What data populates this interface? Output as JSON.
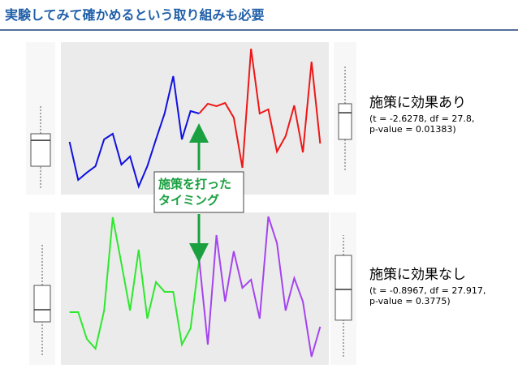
{
  "title": "実験してみて確かめるという取り組みも必要",
  "annotation": [
    "施策を打った",
    "タイミング"
  ],
  "chart_data": [
    {
      "type": "line",
      "label": "施策に効果あり",
      "stats": [
        "(t = -2.6278, df = 27.8,",
        "p-value = 0.01383)"
      ],
      "x": [
        1,
        2,
        3,
        4,
        5,
        6,
        7,
        8,
        9,
        10,
        11,
        12,
        13,
        14,
        15,
        16,
        17,
        18,
        19,
        20,
        21,
        22,
        23,
        24,
        25,
        26,
        27,
        28,
        29,
        30
      ],
      "xlim": [
        0,
        31
      ],
      "ylim": [
        0,
        100
      ],
      "series": [
        {
          "color": "#1010e0",
          "values": [
            34.6,
            9.6,
            14.4,
            18.6,
            36.2,
            39.9,
            19.7,
            25,
            5.3,
            18.6,
            36.2,
            53.2,
            77.7,
            36.2,
            54.8,
            53.2,
            null,
            null,
            null,
            null,
            null,
            null,
            null,
            null,
            null,
            null,
            null,
            null,
            null,
            null
          ],
          "box": [
            4.3,
            18.6,
            35.6,
            39.9,
            58.5
          ]
        },
        {
          "color": "#ee1616",
          "values": [
            null,
            null,
            null,
            null,
            null,
            null,
            null,
            null,
            null,
            null,
            null,
            null,
            null,
            null,
            null,
            53.2,
            59.6,
            58,
            60.1,
            50.5,
            17.6,
            95.7,
            53.2,
            55.9,
            28.2,
            38.3,
            58.5,
            27.7,
            87.2,
            33.5
          ],
          "box": [
            16,
            36.2,
            53.7,
            59.6,
            84
          ]
        }
      ]
    },
    {
      "type": "line",
      "label": "施策に効果なし",
      "stats": [
        "(t = -0.8967, df = 27.917,",
        "p-value = 0.3775)"
      ],
      "x": [
        1,
        2,
        3,
        4,
        5,
        6,
        7,
        8,
        9,
        10,
        11,
        12,
        13,
        14,
        15,
        16,
        17,
        18,
        19,
        20,
        21,
        22,
        23,
        24,
        25,
        26,
        27,
        28,
        29,
        30
      ],
      "xlim": [
        0,
        31
      ],
      "ylim": [
        0,
        100
      ],
      "series": [
        {
          "color": "#2ee82e",
          "values": [
            34.6,
            34.6,
            17,
            10.6,
            35.6,
            96.8,
            66.5,
            35.6,
            75.5,
            30.3,
            54.3,
            47.9,
            47.9,
            13.3,
            23.9,
            69.1,
            null,
            null,
            null,
            null,
            null,
            null,
            null,
            null,
            null,
            null,
            null,
            null,
            null,
            null
          ],
          "box": [
            6.4,
            28.2,
            36.2,
            52.1,
            79.8
          ]
        },
        {
          "color": "#a444ee",
          "values": [
            null,
            null,
            null,
            null,
            null,
            null,
            null,
            null,
            null,
            null,
            null,
            null,
            null,
            null,
            null,
            69.1,
            13.3,
            85.1,
            41.5,
            74.5,
            50.5,
            55.9,
            30.3,
            97.3,
            79.8,
            35.6,
            56.9,
            41.5,
            5.3,
            25
          ],
          " box": null,
          "box": [
            5.3,
            29.3,
            49.5,
            71.8,
            85.1
          ]
        }
      ]
    }
  ]
}
